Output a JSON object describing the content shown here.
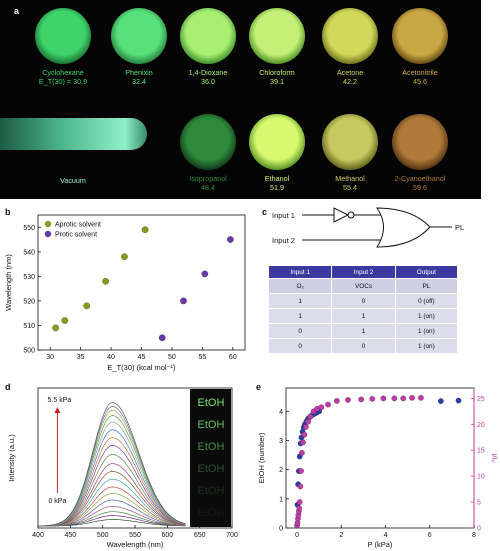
{
  "panel_a": {
    "letter": "a",
    "top_row": [
      {
        "solvent": "Cyclohexane",
        "et": "E_T(30) = 30.9",
        "color": "#3ed46a",
        "rim": "#1f7a3a"
      },
      {
        "solvent": "Phenixin",
        "et": "32.4",
        "color": "#58e07a",
        "rim": "#2a8a45"
      },
      {
        "solvent": "1,4-Dioxane",
        "et": "36.0",
        "color": "#a8ef72",
        "rim": "#4a9a30"
      },
      {
        "solvent": "Chloroform",
        "et": "39.1",
        "color": "#c4f078",
        "rim": "#5a9a2a"
      },
      {
        "solvent": "Acetone",
        "et": "42.2",
        "color": "#d2d85a",
        "rim": "#7a7a20"
      },
      {
        "solvent": "Acetonitrile",
        "et": "45.6",
        "color": "#c9a844",
        "rim": "#6e5418"
      }
    ],
    "bottom_row": [
      {
        "solvent": "Isopropanol",
        "et": "48.4",
        "color": "#2f8a3c",
        "rim": "#14401c"
      },
      {
        "solvent": "Ethanol",
        "et": "51.9",
        "color": "#d8f870",
        "rim": "#5e9a2a"
      },
      {
        "solvent": "Methanol",
        "et": "55.4",
        "color": "#c8c860",
        "rim": "#6a6a22"
      },
      {
        "solvent": "2-Cyanoethanol",
        "et": "59.6",
        "color": "#b07a3a",
        "rim": "#5a3a14"
      }
    ],
    "vacuum_label": "Vacuum",
    "vacuum_color": "#8ef0c8"
  },
  "panel_b": {
    "letter": "b",
    "chart_data": {
      "type": "scatter",
      "xlabel": "E_T(30) (kcal mol⁻¹)",
      "ylabel": "Wavelength (nm)",
      "xlim": [
        28,
        62
      ],
      "ylim": [
        500,
        555
      ],
      "xticks": [
        30,
        35,
        40,
        45,
        50,
        55,
        60
      ],
      "yticks": [
        500,
        510,
        520,
        530,
        540,
        550
      ],
      "legend_position": "top-left",
      "series": [
        {
          "name": "Aprotic solvent",
          "color": "#8a9a1a",
          "x": [
            30.9,
            32.4,
            36.0,
            39.1,
            42.2,
            45.6
          ],
          "y": [
            509,
            512,
            518,
            528,
            538,
            549
          ]
        },
        {
          "name": "Protic solvent",
          "color": "#6a3aa8",
          "x": [
            48.4,
            51.9,
            55.4,
            59.6
          ],
          "y": [
            505,
            520,
            531,
            545
          ]
        }
      ]
    }
  },
  "panel_c": {
    "letter": "c",
    "input1": "Input 1",
    "input2": "Input 2",
    "output": "PL",
    "table": {
      "headers": [
        "Input 1",
        "Input 2",
        "Output"
      ],
      "rows": [
        [
          "O₂",
          "VOCs",
          "PL"
        ],
        [
          "1",
          "0",
          "0 (off)"
        ],
        [
          "1",
          "1",
          "1 (on)"
        ],
        [
          "0",
          "1",
          "1 (on)"
        ],
        [
          "0",
          "0",
          "1 (on)"
        ]
      ]
    }
  },
  "panel_d": {
    "letter": "d",
    "chart_data": {
      "type": "line",
      "xlabel": "Wavelength (nm)",
      "ylabel": "Intensity (a.u.)",
      "xlim": [
        400,
        700
      ],
      "xticks": [
        400,
        450,
        500,
        550,
        600,
        650,
        700
      ],
      "peak_nm": 515,
      "curve_peaks": [
        0.05,
        0.08,
        0.11,
        0.15,
        0.2,
        0.25,
        0.3,
        0.36,
        0.42,
        0.48,
        0.55,
        0.62,
        0.68,
        0.74,
        0.8,
        0.85,
        0.89,
        0.92,
        0.95
      ],
      "top_annotation": "5.5 kPa",
      "bottom_annotation": "0 kPa",
      "inset_text": "EtOH"
    }
  },
  "panel_e": {
    "letter": "e",
    "chart_data": {
      "type": "scatter",
      "xlabel": "P (kPa)",
      "ylabel_left": "EtOH (number)",
      "ylabel_right": "I/I₀",
      "xlim": [
        -0.5,
        8
      ],
      "ylim_left": [
        0,
        4.8
      ],
      "ylim_right": [
        0,
        27
      ],
      "xticks": [
        0,
        2,
        4,
        6,
        8
      ],
      "yticks_left": [
        0,
        1,
        2,
        3,
        4
      ],
      "yticks_right": [
        0,
        5,
        10,
        15,
        20,
        25
      ],
      "series": [
        {
          "name": "EtOH",
          "axis": "left",
          "color": "#2d3fa8",
          "x": [
            0.02,
            0.05,
            0.08,
            0.12,
            0.16,
            0.2,
            0.25,
            0.3,
            0.35,
            0.42,
            0.5,
            0.6,
            0.7,
            0.8,
            0.9,
            1.0,
            6.5,
            7.3
          ],
          "y": [
            0.8,
            1.5,
            1.95,
            2.45,
            2.9,
            3.1,
            3.3,
            3.45,
            3.55,
            3.65,
            3.75,
            3.82,
            3.88,
            3.92,
            3.96,
            4.0,
            4.35,
            4.37
          ]
        },
        {
          "name": "I/I0",
          "axis": "right",
          "color": "#c03aa8",
          "x": [
            0.0,
            0.02,
            0.04,
            0.06,
            0.08,
            0.1,
            0.12,
            0.15,
            0.18,
            0.22,
            0.27,
            0.33,
            0.4,
            0.5,
            0.6,
            0.75,
            0.9,
            1.1,
            1.4,
            1.8,
            2.3,
            2.9,
            3.4,
            3.9,
            4.4,
            4.8,
            5.2,
            5.6
          ],
          "y": [
            0.5,
            1.0,
            1.8,
            2.5,
            3.2,
            3.8,
            5.0,
            8.0,
            11.0,
            14.5,
            16.5,
            18.0,
            19.5,
            20.5,
            21.5,
            22.5,
            23.0,
            23.3,
            23.8,
            24.5,
            24.7,
            24.8,
            24.9,
            25.0,
            25.0,
            25.0,
            25.1,
            25.1
          ]
        }
      ]
    }
  }
}
